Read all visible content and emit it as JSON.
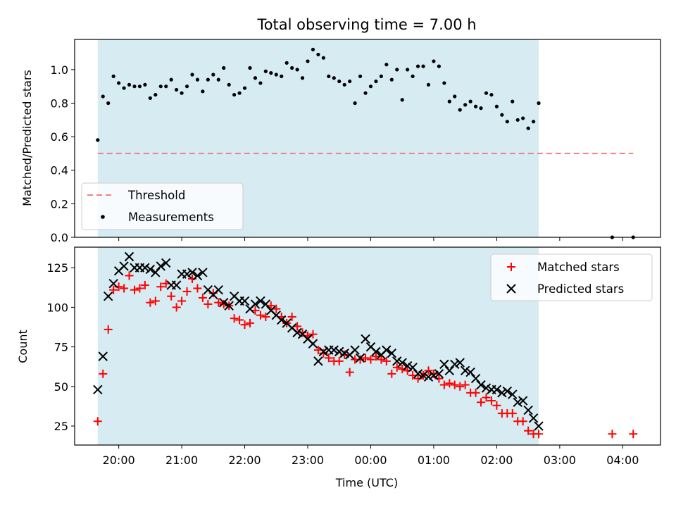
{
  "chart_data": {
    "title": "Total observing time = 7.00 h",
    "xlabel": "Time (UTC)",
    "x_ticks": [
      "20:00",
      "21:00",
      "22:00",
      "23:00",
      "00:00",
      "01:00",
      "02:00",
      "03:00",
      "04:00"
    ],
    "x_range_hours": [
      19.3,
      4.6
    ],
    "observing_window": {
      "start": "19:40",
      "end": "02:40",
      "color": "#add8e6"
    },
    "top_panel": {
      "type": "scatter",
      "ylabel": "Matched/Predicted stars",
      "ylim": [
        0,
        1.18
      ],
      "y_ticks": [
        "0.0",
        "0.2",
        "0.4",
        "0.6",
        "0.8",
        "1.0"
      ],
      "threshold": {
        "name": "Threshold",
        "value": 0.5,
        "x_start": "19:40",
        "x_end": "04:10",
        "color": "#f08080"
      },
      "legend": [
        "Threshold",
        "Measurements"
      ],
      "legend_loc": "lower-left",
      "measurements": {
        "name": "Measurements",
        "times": [
          "19:40",
          "19:45",
          "19:50",
          "19:55",
          "20:00",
          "20:05",
          "20:10",
          "20:15",
          "20:20",
          "20:25",
          "20:30",
          "20:35",
          "20:40",
          "20:45",
          "20:50",
          "20:55",
          "21:00",
          "21:05",
          "21:10",
          "21:15",
          "21:20",
          "21:25",
          "21:30",
          "21:35",
          "21:40",
          "21:45",
          "21:50",
          "21:55",
          "22:00",
          "22:05",
          "22:10",
          "22:15",
          "22:20",
          "22:25",
          "22:30",
          "22:35",
          "22:40",
          "22:45",
          "22:50",
          "22:55",
          "23:00",
          "23:05",
          "23:10",
          "23:15",
          "23:20",
          "23:25",
          "23:30",
          "23:35",
          "23:40",
          "23:45",
          "23:50",
          "23:55",
          "00:00",
          "00:05",
          "00:10",
          "00:15",
          "00:20",
          "00:25",
          "00:30",
          "00:35",
          "00:40",
          "00:45",
          "00:50",
          "00:55",
          "01:00",
          "01:05",
          "01:10",
          "01:15",
          "01:20",
          "01:25",
          "01:30",
          "01:35",
          "01:40",
          "01:45",
          "01:50",
          "01:55",
          "02:00",
          "02:05",
          "02:10",
          "02:15",
          "02:20",
          "02:25",
          "02:30",
          "02:35",
          "02:40",
          "03:50",
          "04:10"
        ],
        "values": [
          0.58,
          0.84,
          0.8,
          0.96,
          0.92,
          0.89,
          0.91,
          0.9,
          0.9,
          0.91,
          0.83,
          0.85,
          0.9,
          0.9,
          0.94,
          0.88,
          0.86,
          0.9,
          0.97,
          0.94,
          0.87,
          0.94,
          0.97,
          0.94,
          1.01,
          0.91,
          0.85,
          0.86,
          0.89,
          1.01,
          0.95,
          0.92,
          0.99,
          0.98,
          0.97,
          0.96,
          1.04,
          1.01,
          1.0,
          0.95,
          1.05,
          1.12,
          1.09,
          1.07,
          0.96,
          0.95,
          0.93,
          0.91,
          0.93,
          0.8,
          0.96,
          0.86,
          0.9,
          0.93,
          0.96,
          1.03,
          0.94,
          1.0,
          0.82,
          1.0,
          0.96,
          1.02,
          1.02,
          0.91,
          1.05,
          1.02,
          0.92,
          0.81,
          0.84,
          0.76,
          0.79,
          0.81,
          0.78,
          0.77,
          0.86,
          0.85,
          0.78,
          0.73,
          0.69,
          0.81,
          0.7,
          0.71,
          0.65,
          0.69,
          0.8,
          0.0,
          0.0
        ]
      }
    },
    "bottom_panel": {
      "type": "scatter",
      "ylabel": "Count",
      "ylim": [
        13,
        138
      ],
      "y_ticks": [
        25,
        50,
        75,
        100,
        125
      ],
      "legend": [
        "Matched stars",
        "Predicted stars"
      ],
      "legend_loc": "upper-right",
      "series": [
        {
          "name": "Matched stars",
          "marker": "+",
          "color": "#ff0000",
          "times": [
            "19:40",
            "19:45",
            "19:50",
            "19:55",
            "20:00",
            "20:05",
            "20:10",
            "20:15",
            "20:20",
            "20:25",
            "20:30",
            "20:35",
            "20:40",
            "20:45",
            "20:50",
            "20:55",
            "21:00",
            "21:05",
            "21:10",
            "21:15",
            "21:20",
            "21:25",
            "21:30",
            "21:35",
            "21:40",
            "21:45",
            "21:50",
            "21:55",
            "22:00",
            "22:05",
            "22:10",
            "22:15",
            "22:20",
            "22:25",
            "22:30",
            "22:35",
            "22:40",
            "22:45",
            "22:50",
            "22:55",
            "23:00",
            "23:05",
            "23:10",
            "23:15",
            "23:20",
            "23:25",
            "23:30",
            "23:35",
            "23:40",
            "23:45",
            "23:50",
            "23:55",
            "00:00",
            "00:05",
            "00:10",
            "00:15",
            "00:20",
            "00:25",
            "00:30",
            "00:35",
            "00:40",
            "00:45",
            "00:50",
            "00:55",
            "01:00",
            "01:05",
            "01:10",
            "01:15",
            "01:20",
            "01:25",
            "01:30",
            "01:35",
            "01:40",
            "01:45",
            "01:50",
            "01:55",
            "02:00",
            "02:05",
            "02:10",
            "02:15",
            "02:20",
            "02:25",
            "02:30",
            "02:35",
            "02:40",
            "03:50",
            "04:10"
          ],
          "values": [
            28,
            58,
            86,
            111,
            113,
            112,
            120,
            111,
            112,
            114,
            103,
            104,
            113,
            115,
            107,
            100,
            104,
            110,
            118,
            112,
            106,
            102,
            109,
            103,
            102,
            101,
            93,
            92,
            89,
            90,
            98,
            95,
            94,
            101,
            99,
            94,
            90,
            94,
            88,
            84,
            82,
            83,
            73,
            71,
            68,
            66,
            66,
            70,
            59,
            67,
            67,
            68,
            67,
            69,
            67,
            66,
            58,
            62,
            61,
            60,
            57,
            55,
            57,
            60,
            58,
            55,
            51,
            52,
            51,
            50,
            51,
            46,
            46,
            40,
            43,
            41,
            38,
            33,
            33,
            33,
            28,
            28,
            22,
            20,
            20,
            20,
            20
          ]
        },
        {
          "name": "Predicted stars",
          "marker": "x",
          "color": "#000000",
          "times": [
            "19:40",
            "19:45",
            "19:50",
            "19:55",
            "20:00",
            "20:05",
            "20:10",
            "20:15",
            "20:20",
            "20:25",
            "20:30",
            "20:35",
            "20:40",
            "20:45",
            "20:50",
            "20:55",
            "21:00",
            "21:05",
            "21:10",
            "21:15",
            "21:20",
            "21:25",
            "21:30",
            "21:35",
            "21:40",
            "21:45",
            "21:50",
            "21:55",
            "22:00",
            "22:05",
            "22:10",
            "22:15",
            "22:20",
            "22:25",
            "22:30",
            "22:35",
            "22:40",
            "22:45",
            "22:50",
            "22:55",
            "23:00",
            "23:05",
            "23:10",
            "23:15",
            "23:20",
            "23:25",
            "23:30",
            "23:35",
            "23:40",
            "23:45",
            "23:50",
            "23:55",
            "00:00",
            "00:05",
            "00:10",
            "00:15",
            "00:20",
            "00:25",
            "00:30",
            "00:35",
            "00:40",
            "00:45",
            "00:50",
            "00:55",
            "01:00",
            "01:05",
            "01:10",
            "01:15",
            "01:20",
            "01:25",
            "01:30",
            "01:35",
            "01:40",
            "01:45",
            "01:50",
            "01:55",
            "02:00",
            "02:05",
            "02:10",
            "02:15",
            "02:20",
            "02:25",
            "02:30",
            "02:35",
            "02:40"
          ],
          "values": [
            48,
            69,
            107,
            115,
            123,
            126,
            132,
            125,
            125,
            125,
            124,
            122,
            126,
            128,
            114,
            114,
            121,
            121,
            122,
            120,
            122,
            111,
            108,
            111,
            103,
            101,
            107,
            104,
            104,
            99,
            102,
            104,
            102,
            98,
            95,
            92,
            90,
            87,
            84,
            83,
            80,
            77,
            66,
            72,
            73,
            73,
            72,
            71,
            70,
            73,
            68,
            80,
            75,
            72,
            70,
            73,
            71,
            66,
            65,
            63,
            62,
            58,
            57,
            56,
            57,
            58,
            64,
            60,
            64,
            65,
            60,
            59,
            55,
            51,
            49,
            48,
            48,
            46,
            47,
            45,
            40,
            41,
            35,
            30,
            25
          ]
        }
      ]
    }
  }
}
